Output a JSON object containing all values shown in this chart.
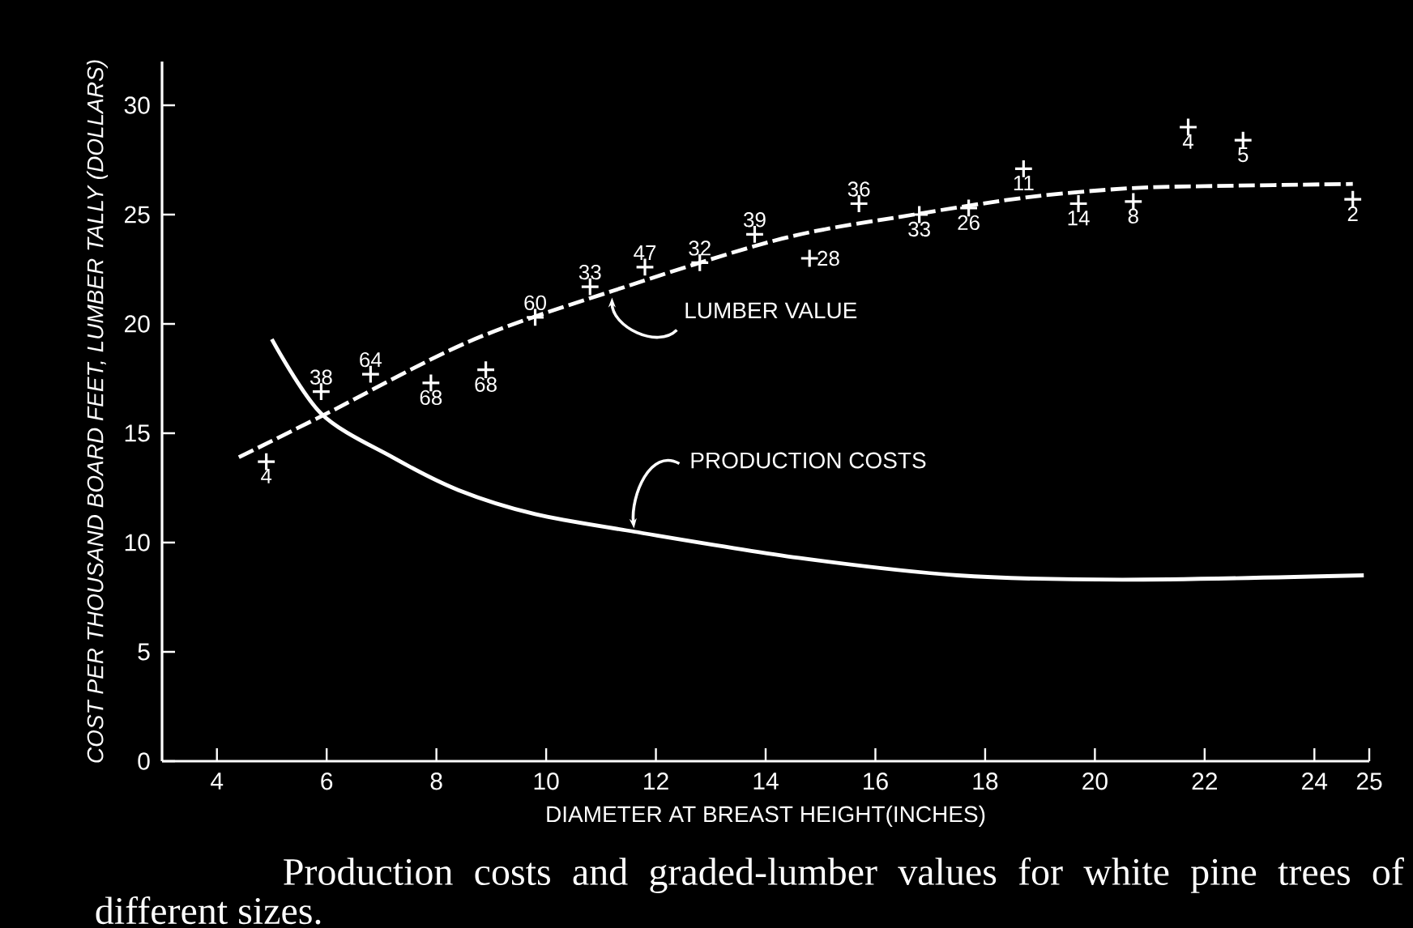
{
  "chart_data": {
    "type": "line",
    "xlabel": "DIAMETER AT BREAST HEIGHT(INCHES)",
    "ylabel": "COST PER THOUSAND BOARD FEET, LUMBER TALLY (DOLLARS)",
    "xlim": [
      3,
      25
    ],
    "ylim": [
      0,
      32
    ],
    "xticks": [
      4,
      6,
      8,
      10,
      12,
      14,
      16,
      18,
      20,
      22,
      24,
      25
    ],
    "yticks": [
      0,
      5,
      10,
      15,
      20,
      25,
      30
    ],
    "series": [
      {
        "type": "scatter",
        "marker": "cross",
        "color": "#ffffff",
        "x": [
          4.9,
          5.9,
          6.8,
          7.9,
          8.9,
          9.8,
          10.8,
          11.8,
          12.8,
          13.8,
          14.8,
          15.7,
          16.8,
          17.7,
          18.7,
          19.7,
          20.7,
          21.7,
          22.7,
          24.7
        ],
        "values": [
          13.7,
          16.9,
          17.7,
          17.3,
          17.9,
          20.3,
          21.7,
          22.6,
          22.8,
          24.1,
          23.0,
          25.5,
          25.0,
          25.3,
          27.1,
          25.5,
          25.6,
          29.0,
          28.4,
          25.7
        ]
      },
      {
        "line_style": "dashed",
        "color": "#ffffff",
        "x": [
          4.4,
          6.0,
          8.6,
          11.2,
          14.3,
          16.7,
          18.8,
          20.6,
          22.0,
          24.7
        ],
        "values": [
          13.9,
          15.9,
          19.2,
          21.5,
          23.9,
          25.0,
          25.8,
          26.2,
          26.3,
          26.4
        ]
      },
      {
        "line_style": "solid",
        "color": "#ffffff",
        "x": [
          5.0,
          5.9,
          7.2,
          8.4,
          9.8,
          11.6,
          14.6,
          17.5,
          20.5,
          24.9
        ],
        "values": [
          19.3,
          15.9,
          13.9,
          12.4,
          11.3,
          10.5,
          9.3,
          8.5,
          8.3,
          8.5
        ]
      }
    ],
    "annotations": [
      {
        "text": "LUMBER VALUE",
        "x": 11.2,
        "y": 21.5
      },
      {
        "text": "PRODUCTION COSTS",
        "x": 11.6,
        "y": 10.5
      },
      {
        "text": "4",
        "x": 4.9,
        "y": 13.7
      },
      {
        "text": "38",
        "x": 5.9,
        "y": 16.9
      },
      {
        "text": "64",
        "x": 6.8,
        "y": 17.7
      },
      {
        "text": "68",
        "x": 7.9,
        "y": 17.3
      },
      {
        "text": "68",
        "x": 8.9,
        "y": 17.9
      },
      {
        "text": "60",
        "x": 9.8,
        "y": 20.3
      },
      {
        "text": "33",
        "x": 10.8,
        "y": 21.7
      },
      {
        "text": "47",
        "x": 11.8,
        "y": 22.6
      },
      {
        "text": "32",
        "x": 12.8,
        "y": 22.8
      },
      {
        "text": "39",
        "x": 13.8,
        "y": 24.1
      },
      {
        "text": "28",
        "x": 14.8,
        "y": 23.0
      },
      {
        "text": "36",
        "x": 15.7,
        "y": 25.5
      },
      {
        "text": "33",
        "x": 16.8,
        "y": 25.0
      },
      {
        "text": "26",
        "x": 17.7,
        "y": 25.3
      },
      {
        "text": "11",
        "x": 18.7,
        "y": 27.1
      },
      {
        "text": "14",
        "x": 19.7,
        "y": 25.5
      },
      {
        "text": "8",
        "x": 20.7,
        "y": 25.6
      },
      {
        "text": "4",
        "x": 21.7,
        "y": 29.0
      },
      {
        "text": "5",
        "x": 22.7,
        "y": 28.4
      },
      {
        "text": "2",
        "x": 24.7,
        "y": 25.7
      },
      "Production costs and graded-lumber values for white pine trees of different sizes."
    ]
  }
}
